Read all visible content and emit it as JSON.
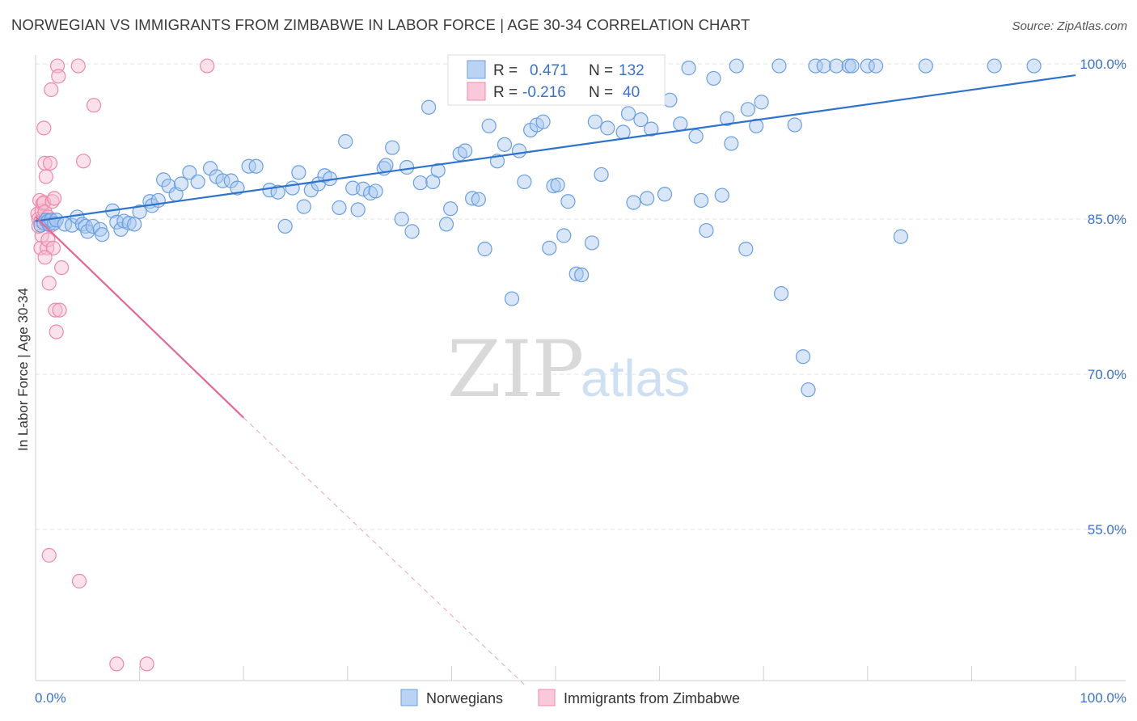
{
  "chart_data": {
    "type": "scatter",
    "title": "NORWEGIAN VS IMMIGRANTS FROM ZIMBABWE IN LABOR FORCE | AGE 30-34 CORRELATION CHART",
    "source": "Source: ZipAtlas.com",
    "xlabel": "",
    "ylabel": "In Labor Force | Age 30-34",
    "xlim": [
      0,
      100
    ],
    "ylim": [
      40,
      101.5
    ],
    "y_ticks": [
      55,
      70,
      85,
      100
    ],
    "y_tick_labels": [
      "55.0%",
      "70.0%",
      "85.0%",
      "100.0%"
    ],
    "x_tick_labels": [
      "0.0%",
      "100.0%"
    ],
    "watermark": {
      "part1": "ZIP",
      "part2": "atlas"
    },
    "legend": {
      "position": "bottom-center"
    },
    "colors": {
      "blue_fill": "#a9c8f0",
      "blue_stroke": "#6a9fe0",
      "blue_line": "#2f72cc",
      "pink_fill": "#f7bcd0",
      "pink_stroke": "#ee88aa",
      "pink_line": "#e0689a",
      "grid": "#e3e3e3",
      "axis_text": "#3b72c8"
    },
    "series": [
      {
        "name": "Norwegians",
        "color": "blue",
        "R_label": "R =",
        "R": "0.471",
        "N_label": "N =",
        "N": "132",
        "trend": {
          "x0": 0,
          "y0": 84.8,
          "x1": 100,
          "y1": 98.9
        },
        "points": [
          [
            0.5,
            84.4
          ],
          [
            0.8,
            84.6
          ],
          [
            1.0,
            84.9
          ],
          [
            1.2,
            84.8
          ],
          [
            1.3,
            84.5
          ],
          [
            1.5,
            84.9
          ],
          [
            1.8,
            84.6
          ],
          [
            2.0,
            84.9
          ],
          [
            2.8,
            84.5
          ],
          [
            3.5,
            84.4
          ],
          [
            4.0,
            85.2
          ],
          [
            4.5,
            84.5
          ],
          [
            4.8,
            84.3
          ],
          [
            5.0,
            83.8
          ],
          [
            5.5,
            84.3
          ],
          [
            6.2,
            84.0
          ],
          [
            6.4,
            83.5
          ],
          [
            7.4,
            85.8
          ],
          [
            7.8,
            84.7
          ],
          [
            8.2,
            84.0
          ],
          [
            8.5,
            84.8
          ],
          [
            9.0,
            84.6
          ],
          [
            9.5,
            84.5
          ],
          [
            10.0,
            85.7
          ],
          [
            11.0,
            86.7
          ],
          [
            11.2,
            86.3
          ],
          [
            11.8,
            86.8
          ],
          [
            12.3,
            88.8
          ],
          [
            12.8,
            88.2
          ],
          [
            13.5,
            87.4
          ],
          [
            14.0,
            88.4
          ],
          [
            14.8,
            89.5
          ],
          [
            15.6,
            88.6
          ],
          [
            16.8,
            89.9
          ],
          [
            17.4,
            89.1
          ],
          [
            18.0,
            88.7
          ],
          [
            18.8,
            88.7
          ],
          [
            19.4,
            88.0
          ],
          [
            20.5,
            90.1
          ],
          [
            21.2,
            90.1
          ],
          [
            22.5,
            87.8
          ],
          [
            23.3,
            87.6
          ],
          [
            24.0,
            84.3
          ],
          [
            24.7,
            88.0
          ],
          [
            25.3,
            89.5
          ],
          [
            25.8,
            86.2
          ],
          [
            26.5,
            87.8
          ],
          [
            27.2,
            88.4
          ],
          [
            27.8,
            89.2
          ],
          [
            28.3,
            88.9
          ],
          [
            29.2,
            86.1
          ],
          [
            29.8,
            92.5
          ],
          [
            30.5,
            88.0
          ],
          [
            31.0,
            85.9
          ],
          [
            31.5,
            87.9
          ],
          [
            32.2,
            87.5
          ],
          [
            32.7,
            87.7
          ],
          [
            33.5,
            89.9
          ],
          [
            33.7,
            90.2
          ],
          [
            34.3,
            91.9
          ],
          [
            35.2,
            85.0
          ],
          [
            35.7,
            90.0
          ],
          [
            36.2,
            83.8
          ],
          [
            37.0,
            88.5
          ],
          [
            37.8,
            95.8
          ],
          [
            38.2,
            88.6
          ],
          [
            38.7,
            89.7
          ],
          [
            39.5,
            84.5
          ],
          [
            39.9,
            86.0
          ],
          [
            40.8,
            91.3
          ],
          [
            41.3,
            91.6
          ],
          [
            42.0,
            87.0
          ],
          [
            42.6,
            86.9
          ],
          [
            43.2,
            82.1
          ],
          [
            43.6,
            94.0
          ],
          [
            44.4,
            90.6
          ],
          [
            45.1,
            92.2
          ],
          [
            45.8,
            77.3
          ],
          [
            46.5,
            91.6
          ],
          [
            47.0,
            88.6
          ],
          [
            47.6,
            93.6
          ],
          [
            48.2,
            94.1
          ],
          [
            48.8,
            94.4
          ],
          [
            49.4,
            82.2
          ],
          [
            49.8,
            88.2
          ],
          [
            50.2,
            88.3
          ],
          [
            50.8,
            83.4
          ],
          [
            51.2,
            86.7
          ],
          [
            52.0,
            79.7
          ],
          [
            52.5,
            79.6
          ],
          [
            53.5,
            82.7
          ],
          [
            53.8,
            94.4
          ],
          [
            54.4,
            89.3
          ],
          [
            55.0,
            93.8
          ],
          [
            56.5,
            93.4
          ],
          [
            57.0,
            95.2
          ],
          [
            57.5,
            86.6
          ],
          [
            58.2,
            94.6
          ],
          [
            58.8,
            87.0
          ],
          [
            59.2,
            93.7
          ],
          [
            60.5,
            87.4
          ],
          [
            61.0,
            96.5
          ],
          [
            62.0,
            94.2
          ],
          [
            62.8,
            99.6
          ],
          [
            63.5,
            93.0
          ],
          [
            64.0,
            86.8
          ],
          [
            64.5,
            83.9
          ],
          [
            65.2,
            98.6
          ],
          [
            66.0,
            87.3
          ],
          [
            66.5,
            94.7
          ],
          [
            66.9,
            92.3
          ],
          [
            67.4,
            99.8
          ],
          [
            68.3,
            82.1
          ],
          [
            68.5,
            95.6
          ],
          [
            69.3,
            94.0
          ],
          [
            69.8,
            96.3
          ],
          [
            71.5,
            99.8
          ],
          [
            71.7,
            77.8
          ],
          [
            73.0,
            94.1
          ],
          [
            73.8,
            71.7
          ],
          [
            74.3,
            68.5
          ],
          [
            75.0,
            99.8
          ],
          [
            75.8,
            99.8
          ],
          [
            77.0,
            99.8
          ],
          [
            78.2,
            99.8
          ],
          [
            78.5,
            99.8
          ],
          [
            80.0,
            99.8
          ],
          [
            80.8,
            99.8
          ],
          [
            83.2,
            83.3
          ],
          [
            85.6,
            99.8
          ],
          [
            92.2,
            99.8
          ],
          [
            96.0,
            99.8
          ]
        ]
      },
      {
        "name": "Immigrants from Zimbabwe",
        "color": "pink",
        "R_label": "R =",
        "R": "-0.216",
        "N_label": "N =",
        "N": "40",
        "trend": {
          "x0": 0,
          "y0": 85.2,
          "x1": 20,
          "y1": 65.8
        },
        "trend_dashed": {
          "x0": 20,
          "y0": 65.8,
          "x1": 47.0,
          "y1": 40
        },
        "points": [
          [
            0.2,
            85.5
          ],
          [
            0.3,
            85.0
          ],
          [
            0.4,
            86.8
          ],
          [
            0.5,
            84.8
          ],
          [
            0.6,
            85.8
          ],
          [
            0.7,
            86.5
          ],
          [
            0.8,
            86.6
          ],
          [
            0.9,
            85.7
          ],
          [
            0.5,
            82.2
          ],
          [
            0.6,
            83.4
          ],
          [
            0.8,
            93.8
          ],
          [
            0.9,
            90.4
          ],
          [
            1.0,
            89.1
          ],
          [
            1.1,
            82.2
          ],
          [
            1.2,
            83.0
          ],
          [
            1.3,
            78.8
          ],
          [
            1.4,
            90.4
          ],
          [
            1.5,
            97.5
          ],
          [
            1.6,
            86.7
          ],
          [
            1.7,
            82.2
          ],
          [
            1.8,
            87.0
          ],
          [
            1.9,
            76.2
          ],
          [
            2.0,
            74.1
          ],
          [
            2.1,
            99.8
          ],
          [
            2.2,
            98.8
          ],
          [
            2.3,
            76.2
          ],
          [
            2.5,
            80.3
          ],
          [
            1.0,
            84.9
          ],
          [
            1.2,
            85.2
          ],
          [
            0.3,
            84.3
          ],
          [
            4.1,
            99.8
          ],
          [
            4.6,
            90.6
          ],
          [
            5.6,
            96.0
          ],
          [
            4.2,
            50.0
          ],
          [
            1.3,
            52.5
          ],
          [
            7.8,
            42.0
          ],
          [
            10.7,
            42.0
          ],
          [
            16.5,
            99.8
          ],
          [
            0.9,
            81.3
          ],
          [
            1.5,
            84.4
          ]
        ]
      }
    ]
  }
}
